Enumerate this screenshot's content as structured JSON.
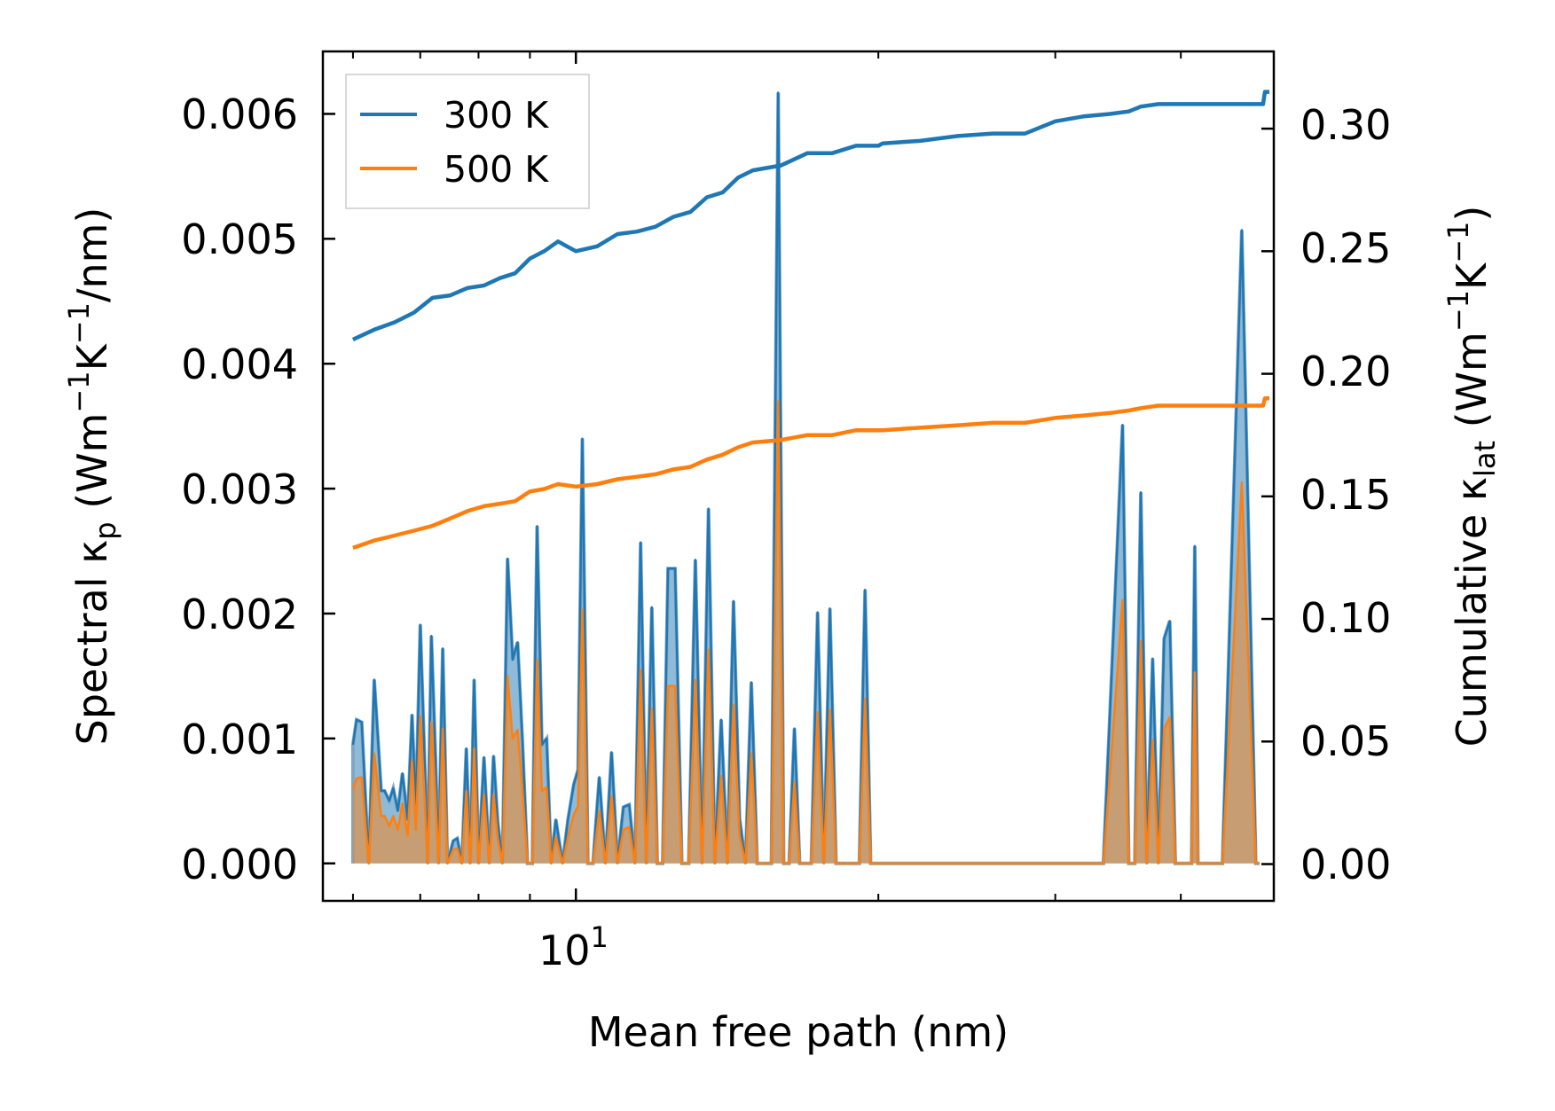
{
  "chart_data": {
    "type": "area+line (dual y-axis, log x)",
    "xlabel": "Mean free path (nm)",
    "ylabel_left": {
      "prefix": "Spectral κ",
      "sub": "p",
      "units_pre": " (Wm",
      "sup1": "−1",
      "units_mid": "K",
      "sup2": "−1",
      "units_post": "/nm)"
    },
    "ylabel_right": {
      "prefix": "Cumulative κ",
      "sub": "lat",
      "units_pre": " (Wm",
      "sup1": "−1",
      "units_mid": "K",
      "sup2": "−1",
      "units_post": ")"
    },
    "x_scale": "log",
    "xlim": [
      5.6,
      49.5
    ],
    "ylim_left": [
      -0.0003,
      0.0065
    ],
    "ylim_right": [
      -0.015,
      0.3315
    ],
    "x_major_ticks": [
      {
        "value": 10,
        "base": "10",
        "exp": "1"
      }
    ],
    "x_minor_ticks": [
      6,
      7,
      8,
      9,
      20,
      30,
      40
    ],
    "left_ticks": [
      "0.000",
      "0.001",
      "0.002",
      "0.003",
      "0.004",
      "0.005",
      "0.006"
    ],
    "right_ticks": [
      "0.00",
      "0.05",
      "0.10",
      "0.15",
      "0.20",
      "0.25",
      "0.30"
    ],
    "legend": {
      "position": "top-left",
      "entries": [
        {
          "label": "300 K",
          "color": "#1f77b4"
        },
        {
          "label": "500 K",
          "color": "#ff7f0e"
        }
      ]
    },
    "colors": {
      "s300": "#1f77b4",
      "s500": "#ff7f0e",
      "fill300": "#1f77b4",
      "fill500": "#ff7f0e"
    },
    "spectral_x": [
      6.0,
      6.05,
      6.12,
      6.22,
      6.3,
      6.4,
      6.45,
      6.52,
      6.58,
      6.65,
      6.72,
      6.8,
      6.87,
      6.93,
      7.0,
      7.07,
      7.12,
      7.18,
      7.25,
      7.3,
      7.37,
      7.45,
      7.55,
      7.62,
      7.7,
      7.78,
      7.85,
      7.92,
      8.0,
      8.1,
      8.2,
      8.28,
      8.36,
      8.45,
      8.55,
      8.65,
      8.75,
      8.85,
      8.95,
      9.05,
      9.15,
      9.25,
      9.35,
      9.45,
      9.55,
      9.7,
      9.82,
      9.95,
      10.05,
      10.15,
      10.28,
      10.4,
      10.55,
      10.7,
      10.85,
      11.0,
      11.15,
      11.3,
      11.45,
      11.6,
      11.75,
      11.9,
      12.05,
      12.2,
      12.35,
      12.55,
      12.75,
      12.95,
      13.15,
      13.35,
      13.55,
      13.75,
      13.95,
      14.15,
      14.35,
      14.55,
      14.75,
      14.95,
      15.15,
      15.4,
      15.65,
      15.9,
      16.1,
      16.3,
      16.5,
      16.7,
      16.9,
      17.15,
      17.4,
      17.65,
      17.9,
      18.15,
      18.4,
      18.65,
      18.9,
      19.15,
      19.4,
      19.65,
      19.9,
      20.15,
      20.4,
      20.65,
      20.9,
      21.15,
      21.4,
      21.65,
      21.9,
      22.15,
      22.4,
      22.65,
      22.9,
      23.2,
      23.5,
      23.8,
      24.1,
      24.4,
      24.65,
      24.9,
      25.15,
      25.4,
      25.65,
      25.9,
      26.2,
      26.5,
      26.8,
      27.1,
      27.4,
      27.7,
      28.0,
      28.3,
      28.6,
      28.9,
      29.2,
      29.5,
      29.8,
      30.1,
      30.4,
      31.0,
      32.0,
      33.5,
      35.0,
      35.5,
      36.0,
      36.5,
      37.0,
      37.5,
      38.0,
      38.5,
      39.0,
      39.5,
      40.0,
      40.5,
      41.0,
      41.3,
      41.6,
      42.0,
      42.5,
      43.0,
      44.0,
      46.0,
      47.5,
      47.7,
      47.9,
      48.1,
      48.3,
      49.0
    ],
    "spectral_300": [
      0.00095,
      0.00115,
      0.00113,
      0.0,
      0.00147,
      0.00058,
      0.00058,
      0.0005,
      0.0006,
      0.00042,
      0.00072,
      0.00035,
      0.00119,
      0.00043,
      0.00191,
      0.00082,
      0.0,
      0.00182,
      0.00083,
      0.0,
      0.00172,
      0.0,
      0.00018,
      0.0002,
      0.0,
      0.00092,
      0.0,
      0.00147,
      0.0,
      0.00085,
      0.0,
      0.00086,
      0.00033,
      0.0,
      0.00244,
      0.00163,
      0.00177,
      0.00095,
      0.0,
      0.0,
      0.0027,
      0.00095,
      0.001,
      0.0,
      0.00035,
      0.0,
      0.00035,
      0.00063,
      0.00075,
      0.0034,
      0.0,
      0.0,
      0.00069,
      0.0,
      0.00089,
      0.0,
      0.00045,
      0.00047,
      0.0,
      0.00257,
      0.0,
      0.00205,
      0.0,
      0.0,
      0.00236,
      0.00236,
      0.0,
      0.0,
      0.00243,
      0.0,
      0.00284,
      0.0,
      0.00115,
      0.0,
      0.0021,
      0.00036,
      0.0,
      0.00145,
      0.0,
      0.0,
      0.0,
      0.00617,
      0.0,
      0.0,
      0.00108,
      0.0,
      0.0,
      0.0,
      0.00201,
      0.0,
      0.00204,
      0.0,
      0.0,
      0.0,
      0.0,
      0.0,
      0.00219,
      0.0,
      0.0,
      0.0,
      0.0,
      0.0,
      0.0,
      0.0,
      0.0,
      0.0,
      0.0,
      0.0,
      0.0,
      0.0,
      0.0,
      0.0,
      0.0,
      0.0,
      0.0,
      0.0,
      0.0,
      0.0,
      0.0,
      0.0,
      0.0,
      0.0,
      0.0,
      0.0,
      0.0,
      0.0,
      0.0,
      0.0,
      0.0,
      0.0,
      0.0,
      0.0,
      0.0,
      0.0,
      0.0,
      0.0,
      0.0,
      0.0,
      0.0,
      0.0,
      0.00351,
      0.0,
      0.0,
      0.00297,
      0.0,
      0.00164,
      0.0,
      0.0018,
      0.00194,
      0.0,
      0.0,
      0.0,
      0.0,
      0.00254,
      0.0,
      0.0,
      0.0,
      0.0,
      0.0,
      0.00507,
      0.0,
      0.0,
      0.0
    ],
    "spectral_500": [
      0.0006,
      0.00068,
      0.00069,
      0.0,
      0.00088,
      0.00038,
      0.00038,
      0.0003,
      0.00038,
      0.00027,
      0.00048,
      0.00022,
      0.00082,
      0.00027,
      0.00118,
      0.00052,
      0.0,
      0.00113,
      0.00052,
      0.0,
      0.00108,
      0.0,
      0.00011,
      0.00012,
      0.0,
      0.00058,
      0.0,
      0.00092,
      0.0,
      0.00055,
      0.0,
      0.00055,
      0.0002,
      0.0,
      0.0015,
      0.001,
      0.00107,
      0.00058,
      0.0,
      0.0,
      0.00163,
      0.00058,
      0.00061,
      0.0,
      0.00021,
      0.0,
      0.00021,
      0.00039,
      0.00046,
      0.00203,
      0.0,
      0.0,
      0.00042,
      0.0,
      0.00054,
      0.0,
      0.00027,
      0.00029,
      0.0,
      0.00155,
      0.0,
      0.00124,
      0.0,
      0.0,
      0.00142,
      0.00142,
      0.0,
      0.0,
      0.00147,
      0.0,
      0.00171,
      0.0,
      0.0007,
      0.0,
      0.00127,
      0.00022,
      0.0,
      0.00088,
      0.0,
      0.0,
      0.0,
      0.0037,
      0.0,
      0.0,
      0.00065,
      0.0,
      0.0,
      0.0,
      0.00121,
      0.0,
      0.00123,
      0.0,
      0.0,
      0.0,
      0.0,
      0.0,
      0.00132,
      0.0,
      0.0,
      0.0,
      0.0,
      0.0,
      0.0,
      0.0,
      0.0,
      0.0,
      0.0,
      0.0,
      0.0,
      0.0,
      0.0,
      0.0,
      0.0,
      0.0,
      0.0,
      0.0,
      0.0,
      0.0,
      0.0,
      0.0,
      0.0,
      0.0,
      0.0,
      0.0,
      0.0,
      0.0,
      0.0,
      0.0,
      0.0,
      0.0,
      0.0,
      0.0,
      0.0,
      0.0,
      0.0,
      0.0,
      0.0,
      0.0,
      0.0,
      0.0,
      0.00211,
      0.0,
      0.0,
      0.00178,
      0.0,
      0.00099,
      0.0,
      0.00108,
      0.00117,
      0.0,
      0.0,
      0.0,
      0.0,
      0.00153,
      0.0,
      0.0,
      0.0,
      0.0,
      0.0,
      0.00305,
      0.0,
      0.0,
      0.0
    ],
    "cumulative_300": {
      "x": [
        6.0,
        6.3,
        6.6,
        6.9,
        7.2,
        7.5,
        7.8,
        8.1,
        8.4,
        8.7,
        9.0,
        9.3,
        9.6,
        10.0,
        10.5,
        11.0,
        11.5,
        12.0,
        12.5,
        13.0,
        13.5,
        14.0,
        14.5,
        15.0,
        16.0,
        17.0,
        18.0,
        19.0,
        20.0,
        20.2,
        22.0,
        24.0,
        26.0,
        28.0,
        30.0,
        32.0,
        34.0,
        35.5,
        36.5,
        38.0,
        40.0,
        42.0,
        44.0,
        47.0,
        48.3,
        48.5,
        49.0
      ],
      "y": [
        0.214,
        0.218,
        0.221,
        0.225,
        0.231,
        0.232,
        0.235,
        0.236,
        0.239,
        0.241,
        0.247,
        0.25,
        0.254,
        0.25,
        0.252,
        0.257,
        0.258,
        0.26,
        0.264,
        0.266,
        0.272,
        0.274,
        0.28,
        0.283,
        0.285,
        0.29,
        0.29,
        0.293,
        0.293,
        0.294,
        0.295,
        0.297,
        0.298,
        0.298,
        0.303,
        0.305,
        0.306,
        0.307,
        0.309,
        0.31,
        0.31,
        0.31,
        0.31,
        0.31,
        0.31,
        0.315,
        0.315
      ]
    },
    "cumulative_500": {
      "x": [
        6.0,
        6.3,
        6.6,
        6.9,
        7.2,
        7.5,
        7.8,
        8.1,
        8.4,
        8.7,
        9.0,
        9.3,
        9.6,
        10.0,
        10.5,
        11.0,
        11.5,
        12.0,
        12.5,
        13.0,
        13.5,
        14.0,
        14.5,
        15.0,
        16.0,
        17.0,
        18.0,
        19.0,
        20.0,
        20.2,
        22.0,
        24.0,
        26.0,
        28.0,
        30.0,
        32.0,
        34.0,
        35.5,
        36.5,
        38.0,
        40.0,
        42.0,
        44.0,
        47.0,
        48.3,
        48.5,
        49.0
      ],
      "y": [
        0.129,
        0.132,
        0.134,
        0.136,
        0.138,
        0.141,
        0.144,
        0.146,
        0.147,
        0.148,
        0.152,
        0.153,
        0.155,
        0.154,
        0.155,
        0.157,
        0.158,
        0.159,
        0.161,
        0.162,
        0.165,
        0.167,
        0.17,
        0.172,
        0.173,
        0.175,
        0.175,
        0.177,
        0.177,
        0.177,
        0.178,
        0.179,
        0.18,
        0.18,
        0.182,
        0.183,
        0.184,
        0.185,
        0.186,
        0.187,
        0.187,
        0.187,
        0.187,
        0.187,
        0.187,
        0.19,
        0.19
      ]
    }
  }
}
